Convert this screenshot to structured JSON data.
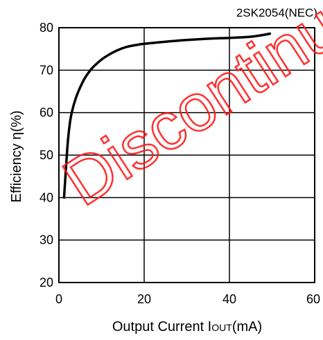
{
  "chart_data": {
    "type": "line",
    "subtitle": "2SK2054(NEC)",
    "xlabel_main": "Output Current I",
    "xlabel_sub": "OUT",
    "xlabel_unit": "(mA)",
    "ylabel": "Efficiency η(%)",
    "xlim": [
      0,
      60
    ],
    "ylim": [
      20,
      80
    ],
    "xticks": [
      0,
      20,
      40,
      60
    ],
    "yticks": [
      20,
      30,
      40,
      50,
      60,
      70,
      80
    ],
    "grid": true,
    "series": [
      {
        "x": [
          1.2,
          1.6,
          2,
          2.5,
          3,
          4,
          5,
          6,
          7,
          8,
          10,
          12,
          14,
          16,
          18,
          20,
          25,
          30,
          35,
          40,
          44,
          46,
          48,
          49.5
        ],
        "y": [
          40,
          46,
          52,
          57,
          60,
          63.5,
          66,
          68,
          69.5,
          70.7,
          72.5,
          73.8,
          74.8,
          75.5,
          75.9,
          76.2,
          76.7,
          77.1,
          77.4,
          77.6,
          77.8,
          78,
          78.3,
          78.6
        ],
        "color": "#000000"
      }
    ],
    "watermark": "Discontinued"
  }
}
